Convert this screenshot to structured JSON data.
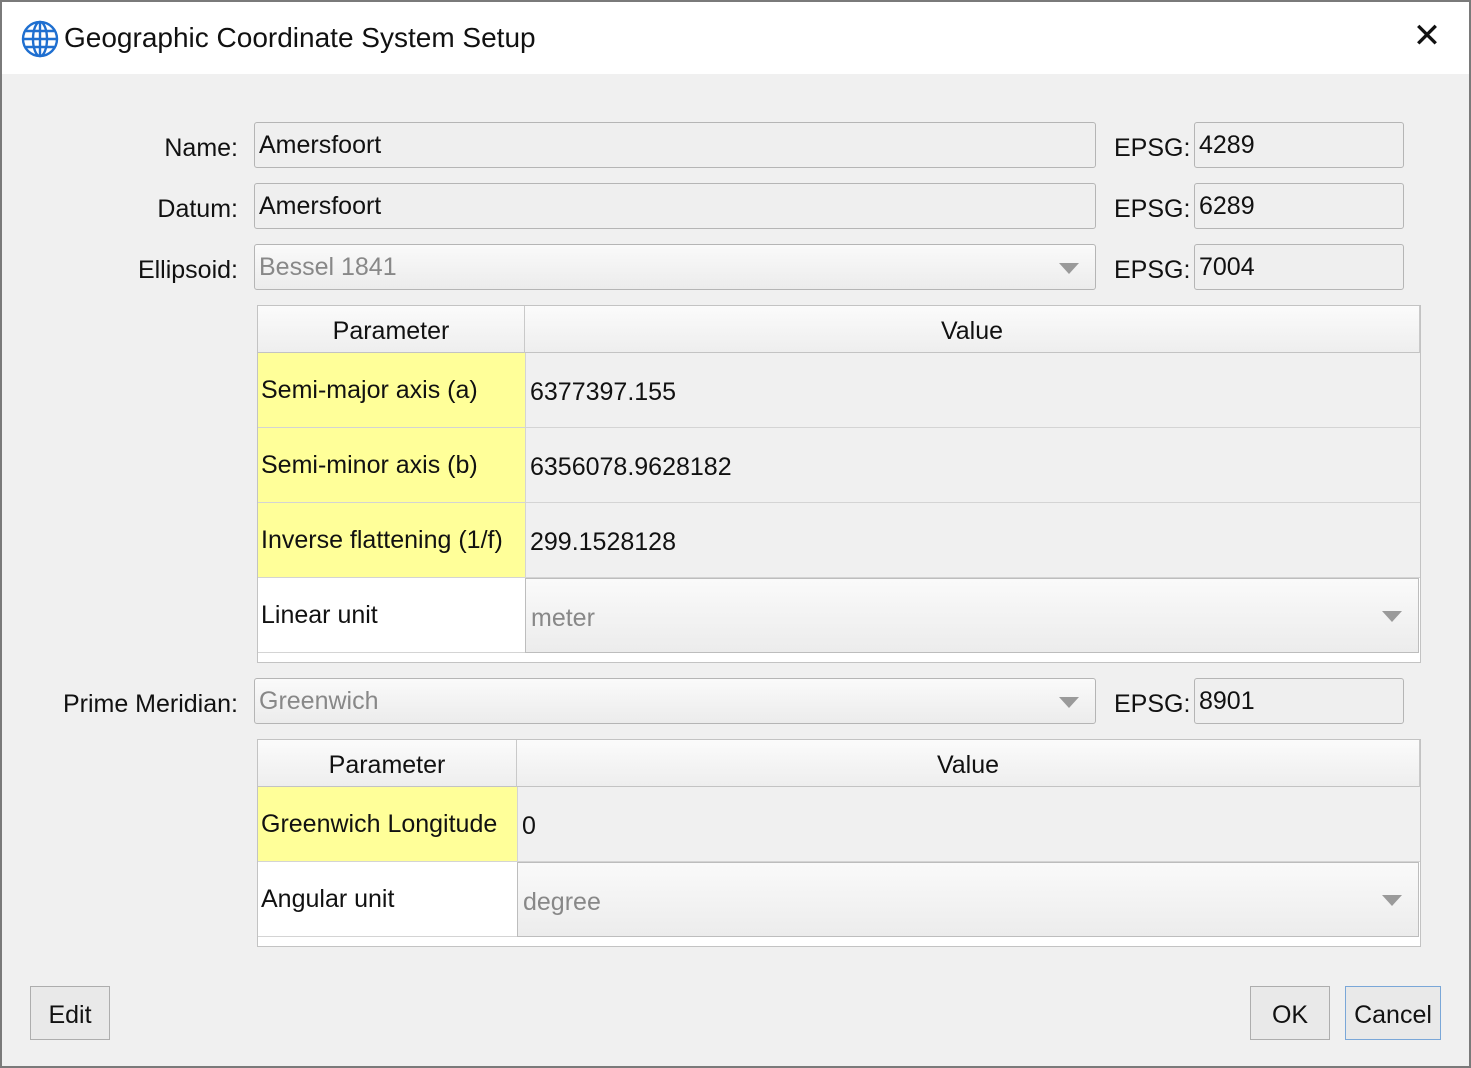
{
  "window": {
    "title": "Geographic Coordinate System Setup",
    "icon": "globe-icon",
    "close_icon": "close-icon"
  },
  "form": {
    "name": {
      "label": "Name:",
      "value": "Amersfoort",
      "epsg_label": "EPSG:",
      "epsg": "4289"
    },
    "datum": {
      "label": "Datum:",
      "value": "Amersfoort",
      "epsg_label": "EPSG:",
      "epsg": "6289"
    },
    "ellipsoid": {
      "label": "Ellipsoid:",
      "value": "Bessel 1841",
      "epsg_label": "EPSG:",
      "epsg": "7004"
    },
    "prime_meridian": {
      "label": "Prime Meridian:",
      "value": "Greenwich",
      "epsg_label": "EPSG:",
      "epsg": "8901"
    }
  },
  "ellipsoid_table": {
    "headers": [
      "Parameter",
      "Value"
    ],
    "rows": [
      {
        "param": "Semi-major axis (a)",
        "value": "6377397.155"
      },
      {
        "param": "Semi-minor axis (b)",
        "value": "6356078.9628182"
      },
      {
        "param": "Inverse flattening (1/f)",
        "value": "299.1528128"
      },
      {
        "param": "Linear unit",
        "value": "meter"
      }
    ]
  },
  "meridian_table": {
    "headers": [
      "Parameter",
      "Value"
    ],
    "rows": [
      {
        "param": "Greenwich Longitude",
        "value": "0"
      },
      {
        "param": "Angular unit",
        "value": "degree"
      }
    ]
  },
  "buttons": {
    "edit": "Edit",
    "ok": "OK",
    "cancel": "Cancel"
  },
  "colors": {
    "highlight": "#ffff99",
    "accent": "#1f6fd0"
  }
}
